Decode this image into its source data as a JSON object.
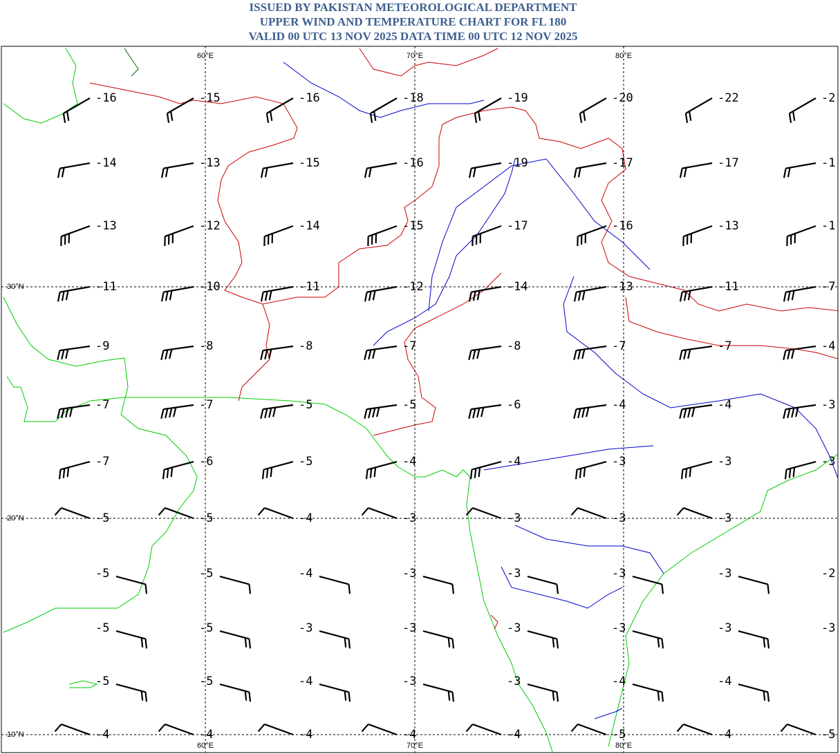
{
  "header": {
    "lines": [
      "ISSUED BY PAKISTAN METEOROLOGICAL DEPARTMENT",
      "UPPER WIND AND TEMPERATURE CHART FOR FL 180",
      "VALID 00 UTC 13 NOV 2025 DATA TIME 00 UTC 12 NOV 2025"
    ]
  },
  "map": {
    "longitude_labels": [
      "60°E",
      "70°E",
      "80°E"
    ],
    "latitude_labels": [
      "30°N",
      "20°N",
      "10°N"
    ],
    "temperatures": [
      [
        "-16",
        "-15",
        "-16",
        "-18",
        "-19",
        "-20",
        "-22",
        "-2"
      ],
      [
        "-14",
        "-13",
        "-15",
        "-16",
        "-19",
        "-17",
        "-17",
        "-1"
      ],
      [
        "-13",
        "-12",
        "-14",
        "-15",
        "-17",
        "-16",
        "-13",
        "-1"
      ],
      [
        "-11",
        "-10",
        "-11",
        "-12",
        "-14",
        "-13",
        "-11",
        "-7"
      ],
      [
        "-9",
        "-8",
        "-8",
        "-7",
        "-8",
        "-7",
        "-7",
        "-4"
      ],
      [
        "-7",
        "-7",
        "-5",
        "-5",
        "-6",
        "-4",
        "-4",
        "-3"
      ],
      [
        "-7",
        "-6",
        "-5",
        "-4",
        "-4",
        "-3",
        "-3",
        "-3"
      ],
      [
        "-5",
        "-5",
        "-4",
        "-3",
        "-3",
        "-3",
        "-3"
      ],
      [
        "-5",
        "-5",
        "-4",
        "-3",
        "-3",
        "-3",
        "-3",
        "-2"
      ],
      [
        "-5",
        "-5",
        "-3",
        "-3",
        "-3",
        "-3",
        "-3",
        "-3"
      ],
      [
        "-5",
        "-5",
        "-4",
        "-3",
        "-3",
        "-4",
        "-4"
      ],
      [
        "-4",
        "-4",
        "-4",
        "-4",
        "-4",
        "-5",
        "-4",
        "-5"
      ]
    ]
  }
}
